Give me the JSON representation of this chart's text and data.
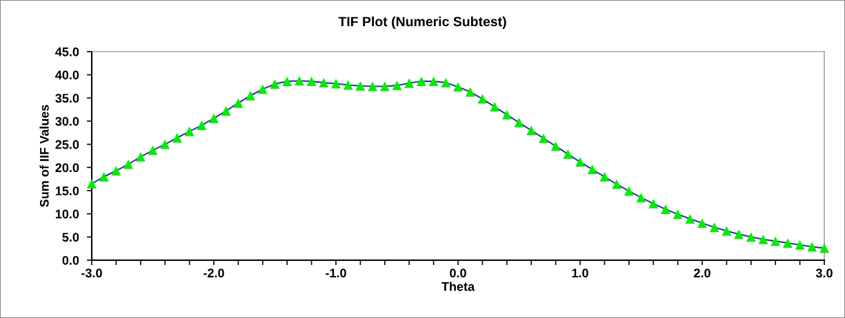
{
  "chart_data": {
    "type": "line",
    "title": "TIF Plot (Numeric Subtest)",
    "xlabel": "Theta",
    "ylabel": "Sum of IIF Values",
    "x": [
      -3.0,
      -2.9,
      -2.8,
      -2.7,
      -2.6,
      -2.5,
      -2.4,
      -2.3,
      -2.2,
      -2.1,
      -2.0,
      -1.9,
      -1.8,
      -1.7,
      -1.6,
      -1.5,
      -1.4,
      -1.3,
      -1.2,
      -1.1,
      -1.0,
      -0.9,
      -0.8,
      -0.7,
      -0.6,
      -0.5,
      -0.4,
      -0.3,
      -0.2,
      -0.1,
      0.0,
      0.1,
      0.2,
      0.3,
      0.4,
      0.5,
      0.6,
      0.7,
      0.8,
      0.9,
      1.0,
      1.1,
      1.2,
      1.3,
      1.4,
      1.5,
      1.6,
      1.7,
      1.8,
      1.9,
      2.0,
      2.1,
      2.2,
      2.3,
      2.4,
      2.5,
      2.6,
      2.7,
      2.8,
      2.9,
      3.0
    ],
    "series": [
      {
        "color": "#3333aa",
        "colors": [
          "#00ee00",
          "#00ee00",
          "#00ee00",
          "#00ee00",
          "#00ee00",
          "#00ee00",
          "#00ee00",
          "#00ee00",
          "#00ee00",
          "#00ee00",
          "#00ee00",
          "#00ee00",
          "#00ee00",
          "#00ee00",
          "#00ee00",
          "#00ee00",
          "#00ee00",
          "#00ee00",
          "#00ee00",
          "#00ee00",
          "#00ee00",
          "#00ee00",
          "#00ee00",
          "#00ee00",
          "#00ee00",
          "#00ee00",
          "#00ee00",
          "#00ee00",
          "#00ee00",
          "#00ee00",
          "#00ee00",
          "#00ee00",
          "#00ee00",
          "#00ee00",
          "#00ee00",
          "#00ee00",
          "#00ee00",
          "#00ee00",
          "#00ee00",
          "#00ee00",
          "#00ee00",
          "#00ee00",
          "#00ee00",
          "#00ee00",
          "#00ee00",
          "#00ee00",
          "#00ee00",
          "#00ee00",
          "#00ee00",
          "#00ee00",
          "#00ee00",
          "#00ee00",
          "#00ee00",
          "#00ee00",
          "#00ee00",
          "#00ee00",
          "#00ee00",
          "#00ee00",
          "#00ee00",
          "#00ee00",
          "#00ee00"
        ],
        "values": [
          16.5,
          18.0,
          19.3,
          20.7,
          22.3,
          23.7,
          25.0,
          26.4,
          27.8,
          29.1,
          30.6,
          32.2,
          33.9,
          35.5,
          36.9,
          38.0,
          38.6,
          38.7,
          38.6,
          38.3,
          38.1,
          37.8,
          37.6,
          37.5,
          37.5,
          37.7,
          38.2,
          38.6,
          38.6,
          38.3,
          37.4,
          36.3,
          34.8,
          33.1,
          31.4,
          29.7,
          28.0,
          26.3,
          24.6,
          22.9,
          21.2,
          19.6,
          18.0,
          16.4,
          14.9,
          13.5,
          12.2,
          11.0,
          9.9,
          8.9,
          8.0,
          7.1,
          6.3,
          5.6,
          5.0,
          4.5,
          4.1,
          3.7,
          3.3,
          2.9,
          2.6
        ]
      }
    ],
    "xlim": [
      -3,
      3
    ],
    "xticks": [
      {
        "value": -3,
        "label": "-3.0"
      },
      {
        "value": -2.8,
        "label": null
      },
      {
        "value": -2.6,
        "label": null
      },
      {
        "value": -2.4,
        "label": null
      },
      {
        "value": -2.2,
        "label": null
      },
      {
        "value": -2,
        "label": "-2.0"
      },
      {
        "value": -1.8,
        "label": null
      },
      {
        "value": -1.6,
        "label": null
      },
      {
        "value": -1.4,
        "label": null
      },
      {
        "value": -1.2,
        "label": null
      },
      {
        "value": -1,
        "label": "-1.0"
      },
      {
        "value": -0.8,
        "label": null
      },
      {
        "value": -0.6,
        "label": null
      },
      {
        "value": -0.4,
        "label": null
      },
      {
        "value": -0.2,
        "label": null
      },
      {
        "value": 0,
        "label": "0.0"
      },
      {
        "value": 0.2,
        "label": null
      },
      {
        "value": 0.4,
        "label": null
      },
      {
        "value": 0.6,
        "label": null
      },
      {
        "value": 0.8,
        "label": null
      },
      {
        "value": 1,
        "label": "1.0"
      },
      {
        "value": 1.2,
        "label": null
      },
      {
        "value": 1.4,
        "label": null
      },
      {
        "value": 1.6,
        "label": null
      },
      {
        "value": 1.8,
        "label": null
      },
      {
        "value": 2,
        "label": "2.0"
      },
      {
        "value": 2.2,
        "label": null
      },
      {
        "value": 2.4,
        "label": null
      },
      {
        "value": 2.6,
        "label": null
      },
      {
        "value": 2.8,
        "label": null
      },
      {
        "value": 3,
        "label": "3.0"
      }
    ],
    "ylim": [
      0,
      45
    ],
    "yticks": [
      {
        "value": 0,
        "label": "0.0"
      },
      {
        "value": 5,
        "label": "5.0"
      },
      {
        "value": 10,
        "label": "10.0"
      },
      {
        "value": 15,
        "label": "15.0"
      },
      {
        "value": 20,
        "label": "20.0"
      },
      {
        "value": 25,
        "label": "25.0"
      },
      {
        "value": 30,
        "label": "30.0"
      },
      {
        "value": 35,
        "label": "35.0"
      },
      {
        "value": 40,
        "label": "40.0"
      },
      {
        "value": 45,
        "label": "45.0"
      }
    ],
    "marker": "triangle",
    "line_style": "solid",
    "grid": false,
    "legend": false
  }
}
